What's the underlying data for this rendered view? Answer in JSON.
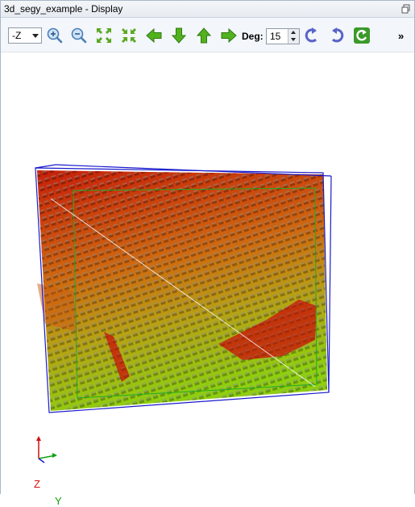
{
  "window": {
    "title": "3d_segy_example - Display"
  },
  "toolbar": {
    "view_select": {
      "value": "-Z"
    },
    "deg_label": "Deg:",
    "deg_value": "15",
    "overflow": "»"
  },
  "axes": {
    "z": "Z",
    "y": "Y",
    "z_color": "#d01010",
    "y_color": "#10a010"
  },
  "colors": {
    "box_outline": "#1a1acc",
    "inner_outline": "#22aa22",
    "high": "#c8200a",
    "low": "#8ecf10"
  }
}
